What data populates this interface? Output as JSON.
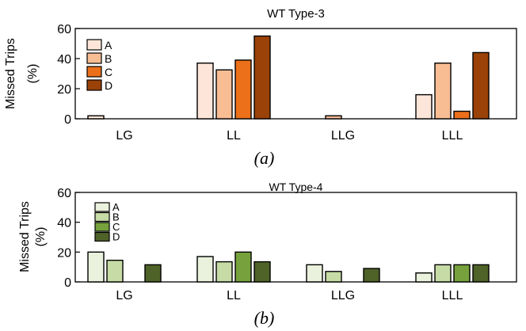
{
  "chart_data": [
    {
      "type": "bar",
      "title": "WT Type-3",
      "ylabel": "Missed Trips (%)",
      "ylabel_lines": [
        "Missed Trips",
        "(%)"
      ],
      "xlabel": "",
      "categories": [
        "LG",
        "LL",
        "LLG",
        "LLL"
      ],
      "ylim": [
        0,
        60
      ],
      "yticks": [
        "0",
        "20",
        "40",
        "60"
      ],
      "grid": false,
      "legend_position": "top-left",
      "caption": "(a)",
      "series": [
        {
          "name": "A",
          "color": "#fde6d9",
          "values": [
            2,
            37,
            0,
            16
          ]
        },
        {
          "name": "B",
          "color": "#f9bd94",
          "values": [
            0,
            32.5,
            2,
            37
          ]
        },
        {
          "name": "C",
          "color": "#ec6f1a",
          "values": [
            0,
            39,
            0,
            5
          ]
        },
        {
          "name": "D",
          "color": "#9a4208",
          "values": [
            0,
            55,
            0,
            44
          ]
        }
      ]
    },
    {
      "type": "bar",
      "title": "WT Type-4",
      "ylabel": "Missed Trips (%)",
      "ylabel_lines": [
        "Missed Trips",
        "(%)"
      ],
      "xlabel": "",
      "categories": [
        "LG",
        "LL",
        "LLG",
        "LLL"
      ],
      "ylim": [
        0,
        60
      ],
      "yticks": [
        "0",
        "20",
        "40",
        "60"
      ],
      "grid": false,
      "legend_position": "top-left",
      "caption": "(b)",
      "series": [
        {
          "name": "A",
          "color": "#eaf1dc",
          "values": [
            20,
            17,
            11.5,
            6
          ]
        },
        {
          "name": "B",
          "color": "#c6dba5",
          "values": [
            14.5,
            13.5,
            7,
            11.5
          ]
        },
        {
          "name": "C",
          "color": "#76a13c",
          "values": [
            0,
            20,
            0,
            11.5
          ]
        },
        {
          "name": "D",
          "color": "#4f6228",
          "values": [
            11.5,
            13.5,
            9,
            11.5
          ]
        }
      ]
    }
  ]
}
